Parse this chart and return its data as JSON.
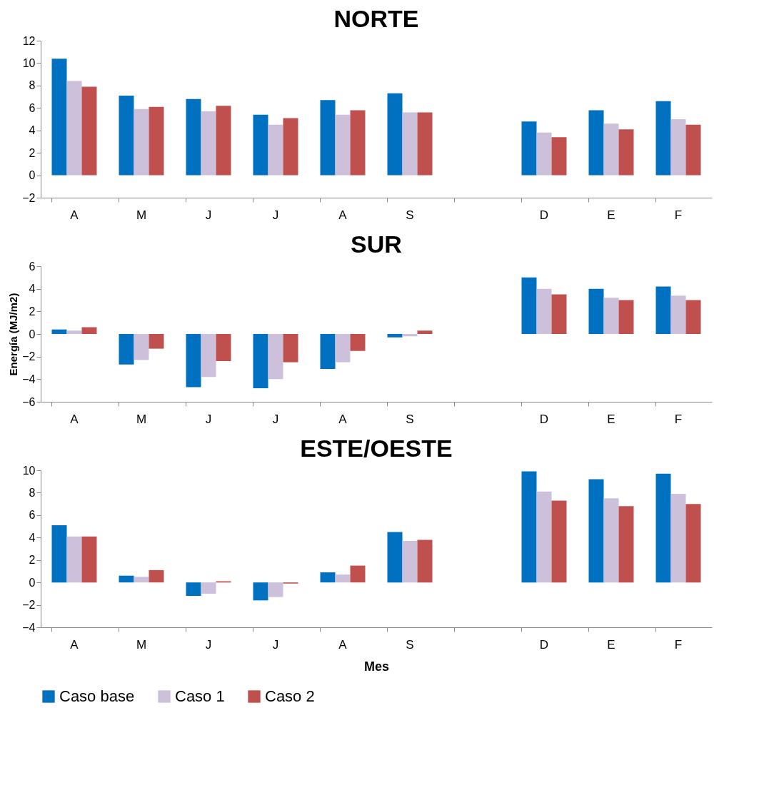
{
  "chart_data": [
    {
      "type": "bar",
      "title": "NORTE",
      "legend": "bottom",
      "categories": [
        "A",
        "M",
        "J",
        "J",
        "A",
        "S",
        null,
        "D",
        "E",
        "F"
      ],
      "ylim": [
        -2,
        12
      ],
      "yticks": [
        -2,
        0,
        2,
        4,
        6,
        8,
        10,
        12
      ],
      "grid": false,
      "series": [
        {
          "name": "Caso base",
          "color": "#0070c0",
          "values": [
            10.4,
            7.1,
            6.8,
            5.4,
            6.7,
            7.3,
            null,
            4.8,
            5.8,
            6.6
          ]
        },
        {
          "name": "Caso 1",
          "color": "#ccc0da",
          "values": [
            8.4,
            5.9,
            5.7,
            4.5,
            5.4,
            5.6,
            null,
            3.8,
            4.6,
            5.0
          ]
        },
        {
          "name": "Caso 2",
          "color": "#c0504d",
          "values": [
            7.9,
            6.1,
            6.2,
            5.1,
            5.8,
            5.6,
            null,
            3.4,
            4.1,
            4.5
          ]
        }
      ]
    },
    {
      "type": "bar",
      "title": "SUR",
      "legend": "bottom",
      "ylabel": "Energía (MJ/m2)",
      "categories": [
        "A",
        "M",
        "J",
        "J",
        "A",
        "S",
        null,
        "D",
        "E",
        "F"
      ],
      "ylim": [
        -6,
        6
      ],
      "yticks": [
        -6,
        -4,
        -2,
        0,
        2,
        4,
        6
      ],
      "grid": false,
      "series": [
        {
          "name": "Caso base",
          "color": "#0070c0",
          "values": [
            0.4,
            -2.7,
            -4.7,
            -4.8,
            -3.1,
            -0.3,
            null,
            5.0,
            4.0,
            4.2
          ]
        },
        {
          "name": "Caso 1",
          "color": "#ccc0da",
          "values": [
            0.3,
            -2.3,
            -3.8,
            -4.0,
            -2.5,
            -0.2,
            null,
            4.0,
            3.2,
            3.4
          ]
        },
        {
          "name": "Caso 2",
          "color": "#c0504d",
          "values": [
            0.6,
            -1.3,
            -2.4,
            -2.5,
            -1.5,
            0.3,
            null,
            3.5,
            3.0,
            3.0
          ]
        }
      ]
    },
    {
      "type": "bar",
      "title": "ESTE/OESTE",
      "xlabel": "Mes",
      "legend": "bottom",
      "categories": [
        "A",
        "M",
        "J",
        "J",
        "A",
        "S",
        null,
        "D",
        "E",
        "F"
      ],
      "ylim": [
        -4,
        10
      ],
      "yticks": [
        -4,
        -2,
        0,
        2,
        4,
        6,
        8,
        10
      ],
      "grid": false,
      "series": [
        {
          "name": "Caso base",
          "color": "#0070c0",
          "values": [
            5.1,
            0.6,
            -1.2,
            -1.6,
            0.9,
            4.5,
            null,
            9.9,
            9.2,
            9.7
          ]
        },
        {
          "name": "Caso 1",
          "color": "#ccc0da",
          "values": [
            4.1,
            0.5,
            -1.0,
            -1.3,
            0.7,
            3.7,
            null,
            8.1,
            7.5,
            7.9
          ]
        },
        {
          "name": "Caso 2",
          "color": "#c0504d",
          "values": [
            4.1,
            1.1,
            0.1,
            -0.1,
            1.5,
            3.8,
            null,
            7.3,
            6.8,
            7.0
          ]
        }
      ]
    }
  ]
}
